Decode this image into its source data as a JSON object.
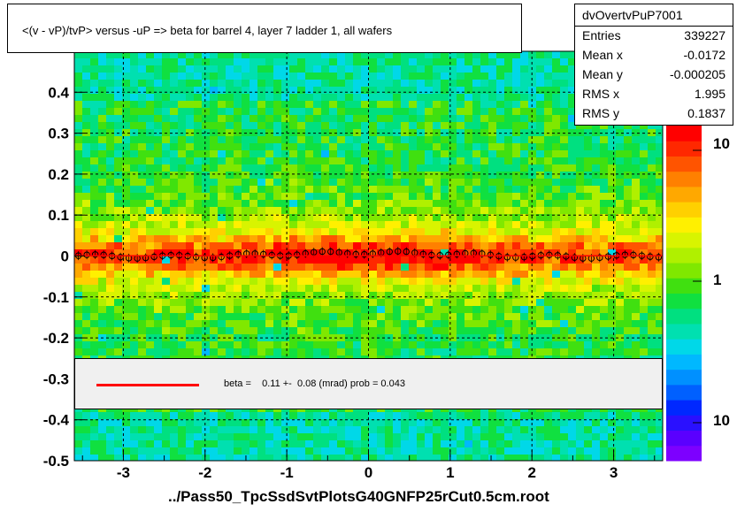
{
  "title": "<(v - vP)/tvP> versus  -uP => beta for barrel 4, layer 7 ladder 1, all wafers",
  "xlabel": "../Pass50_TpcSsdSvtPlotsG40GNFP25rCut0.5cm.root",
  "stats": {
    "name": "dvOvertvPuP7001",
    "rows": [
      {
        "key": "Entries",
        "value": "339227"
      },
      {
        "key": "Mean x",
        "value": "-0.0172"
      },
      {
        "key": "Mean y",
        "value": "-0.000205"
      },
      {
        "key": "RMS x",
        "value": "1.995"
      },
      {
        "key": "RMS y",
        "value": "0.1837"
      }
    ]
  },
  "legend": {
    "text": "beta =    0.11 +-  0.08 (mrad) prob = 0.043",
    "line_color": "#ff0000"
  },
  "chart_data": {
    "type": "heatmap",
    "xlim": [
      -3.6,
      3.6
    ],
    "ylim": [
      -0.5,
      0.5
    ],
    "x_ticks": [
      -3,
      -2,
      -1,
      0,
      1,
      2,
      3
    ],
    "y_ticks": [
      -0.5,
      -0.4,
      -0.3,
      -0.2,
      -0.1,
      0,
      0.1,
      0.2,
      0.3,
      0.4
    ],
    "y_tick_labels": [
      "-0.5",
      "-0.4",
      "-0.3",
      "-0.2",
      "-0.1",
      "0",
      "0.1",
      "0.2",
      "0.3",
      "0.4"
    ],
    "grid": true,
    "colorbar": {
      "scale": "log",
      "labels": [
        "10",
        "1",
        "10"
      ]
    },
    "profile_points": {
      "x_start": -3.55,
      "x_end": 3.55,
      "count": 70,
      "y": 0.003
    },
    "fit_line": {
      "y": 0.0005,
      "color": "#ff0000"
    }
  }
}
